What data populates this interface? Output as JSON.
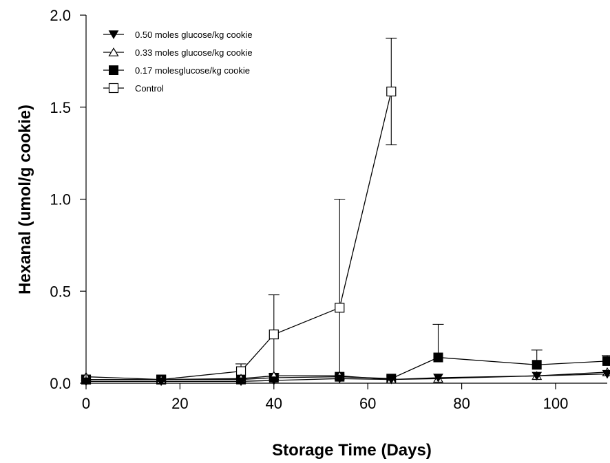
{
  "chart_data": {
    "type": "line",
    "xlabel": "Storage Time (Days)",
    "ylabel": "Hexanal (umol/g cookie)",
    "xlim": [
      0,
      111
    ],
    "ylim": [
      0,
      2.0
    ],
    "x_ticks": [
      0,
      20,
      40,
      60,
      80,
      100
    ],
    "x_tick_labels": [
      "0",
      "20",
      "40",
      "60",
      "80",
      "100"
    ],
    "y_ticks": [
      0,
      0.5,
      1.0,
      1.5,
      2.0
    ],
    "y_tick_labels": [
      "0.0",
      "0.5",
      "1.0",
      "1.5",
      "2.0"
    ],
    "legend_position": "top-left",
    "series": [
      {
        "name": "0.50 moles glucose/kg cookie",
        "marker": "triangle-down-filled",
        "x": [
          0,
          16,
          33,
          40,
          54,
          65,
          75,
          96,
          111
        ],
        "y": [
          0.01,
          0.01,
          0.01,
          0.015,
          0.025,
          0.02,
          0.03,
          0.04,
          0.05
        ],
        "err_up": [
          0,
          0,
          0,
          0,
          0,
          0,
          0,
          0,
          0
        ]
      },
      {
        "name": "0.33 moles glucose/kg cookie",
        "marker": "triangle-up-open",
        "x": [
          0,
          16,
          33,
          40,
          54,
          65,
          75,
          96,
          111
        ],
        "y": [
          0.035,
          0.02,
          0.025,
          0.04,
          0.04,
          0.02,
          0.025,
          0.04,
          0.06
        ],
        "err_up": [
          0,
          0,
          0,
          0,
          0,
          0,
          0,
          0,
          0
        ]
      },
      {
        "name": "0.17 molesglucose/kg cookie",
        "marker": "square-filled",
        "x": [
          0,
          16,
          33,
          40,
          54,
          65,
          75,
          96,
          111
        ],
        "y": [
          0.02,
          0.02,
          0.02,
          0.03,
          0.035,
          0.025,
          0.14,
          0.1,
          0.12
        ],
        "err_up": [
          0,
          0,
          0,
          0,
          0,
          0,
          0.18,
          0.08,
          0.03
        ]
      },
      {
        "name": "Control",
        "marker": "square-open",
        "x": [
          0,
          16,
          33,
          40,
          54,
          65
        ],
        "y": [
          0.02,
          0.02,
          0.065,
          0.265,
          0.41,
          1.585
        ],
        "err_up": [
          0,
          0,
          0.04,
          0.215,
          0.59,
          0.29
        ],
        "err_down": [
          0,
          0,
          0.04,
          0.215,
          0.59,
          0.29
        ]
      }
    ]
  }
}
